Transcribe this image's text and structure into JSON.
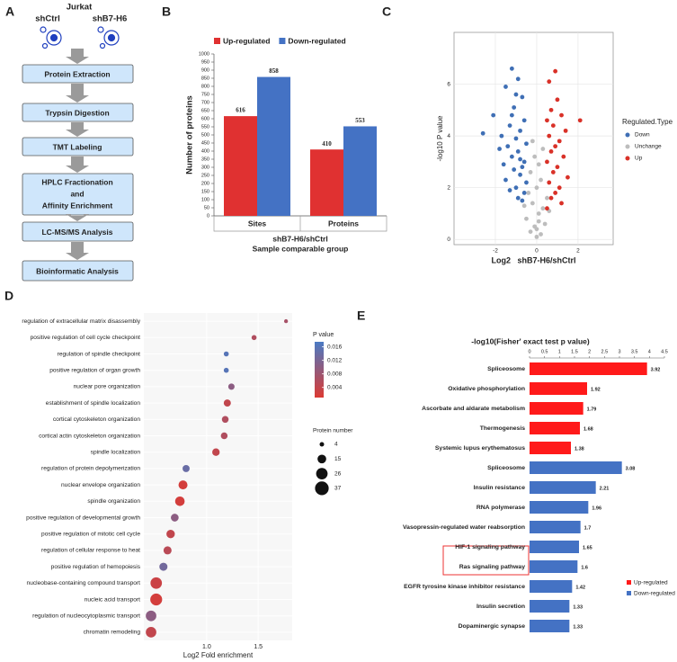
{
  "diagram": {
    "panel": "A",
    "title": "Jurkat",
    "groups": [
      "shCtrl",
      "shB7-H6"
    ],
    "steps": [
      "Protein Extraction",
      "Trypsin Digestion",
      "TMT Labeling",
      [
        "HPLC Fractionation",
        "and",
        "Affinity Enrichment"
      ],
      "LC-MS/MS Analysis",
      "Bioinformatic Analysis"
    ]
  },
  "chart_data": [
    {
      "type": "bar",
      "panel": "B",
      "ylabel": "Number of proteins",
      "xlabel": [
        "shB7-H6/shCtrl",
        "Sample comparable group"
      ],
      "categories": [
        "Sites",
        "Proteins"
      ],
      "series": [
        {
          "name": "Up-regulated",
          "color": "#e03131",
          "values": [
            616,
            410
          ]
        },
        {
          "name": "Down-regulated",
          "color": "#4472c4",
          "values": [
            858,
            553
          ]
        }
      ],
      "ylim": [
        0,
        1000
      ],
      "yticks": [
        0,
        50,
        100,
        150,
        200,
        250,
        300,
        350,
        400,
        450,
        500,
        550,
        600,
        650,
        700,
        750,
        800,
        850,
        900,
        950,
        1000
      ]
    },
    {
      "type": "scatter",
      "panel": "C",
      "ylabel": "-log10 P value",
      "xlabel": "Log2   shB7-H6/shCtrl",
      "legend_title": "Regulated.Type",
      "xlim": [
        -4,
        3.7
      ],
      "xticks": [
        -2,
        0,
        2
      ],
      "ylim": [
        -0.2,
        8
      ],
      "yticks": [
        0,
        2,
        4,
        6
      ],
      "grid": true,
      "series": [
        {
          "name": "Down",
          "color": "#3f6fb5",
          "x": [
            -1.2,
            -0.9,
            -1.5,
            -0.7,
            -1.1,
            -2.1,
            -0.6,
            -1.3,
            -0.8,
            -1.7,
            -1.0,
            -0.5,
            -1.4,
            -0.9,
            -1.2,
            -0.6,
            -2.6,
            -1.8,
            -0.7,
            -1.1,
            -0.8,
            -1.5,
            -0.5,
            -1.0,
            -1.3,
            -0.6,
            -0.9,
            -1.6,
            -0.7,
            -1.2,
            -1.0,
            -0.8
          ],
          "values": [
            6.6,
            6.2,
            5.9,
            5.5,
            5.1,
            4.8,
            4.6,
            4.4,
            4.2,
            4.0,
            3.9,
            3.7,
            3.6,
            3.4,
            3.2,
            3.0,
            4.1,
            3.5,
            2.8,
            2.7,
            2.5,
            2.3,
            2.2,
            2.0,
            1.9,
            1.8,
            1.6,
            2.9,
            1.5,
            4.8,
            5.6,
            3.1
          ]
        },
        {
          "name": "Unchange",
          "color": "#bdbdbd",
          "x": [
            0,
            -0.3,
            0.2,
            -0.1,
            0.4,
            -0.5,
            0.1,
            0.3,
            -0.2,
            0.5,
            -0.4,
            0.0,
            0.2,
            -0.3,
            0.1,
            -0.1,
            0.3,
            -0.2,
            0.0,
            0.6,
            -0.6,
            0.1
          ],
          "values": [
            0.1,
            0.3,
            0.2,
            0.5,
            0.6,
            0.8,
            1.0,
            1.2,
            1.4,
            1.6,
            1.8,
            2.0,
            2.3,
            2.6,
            2.9,
            3.2,
            3.5,
            3.8,
            0.4,
            1.1,
            1.3,
            0.7
          ]
        },
        {
          "name": "Up",
          "color": "#d93128",
          "x": [
            0.9,
            0.6,
            1.0,
            0.7,
            1.2,
            0.5,
            0.8,
            1.4,
            0.6,
            1.1,
            2.1,
            0.9,
            0.7,
            1.3,
            0.5,
            1.0,
            0.8,
            1.5,
            0.6,
            1.1,
            0.9,
            0.7,
            1.2,
            0.5
          ],
          "values": [
            6.5,
            6.1,
            5.4,
            5.0,
            4.8,
            4.6,
            4.4,
            4.2,
            4.0,
            3.8,
            4.6,
            3.6,
            3.4,
            3.2,
            3.0,
            2.8,
            2.6,
            2.4,
            2.2,
            2.0,
            1.8,
            1.6,
            1.4,
            1.2
          ]
        }
      ]
    },
    {
      "type": "dot",
      "panel": "D",
      "xlabel": "Log2 Fold enrichment",
      "color_title": "P value",
      "size_title": "Protein number",
      "categories": [
        "regulation of extracellular matrix disassembly",
        "positive regulation of cell cycle checkpoint",
        "regulation of spindle checkpoint",
        "positive regulation of organ growth",
        "nuclear pore organization",
        "establishment of spindle localization",
        "cortical cytoskeleton organization",
        "cortical actin cytoskeleton organization",
        "spindle localization",
        "regulation of protein depolymerization",
        "nuclear envelope organization",
        "spindle organization",
        "positive regulation of developmental growth",
        "positive regulation of mitotic cell cycle",
        "regulation of cellular response to heat",
        "positive regulation of hemopoiesis",
        "nucleobase-containing compound transport",
        "nucleic acid transport",
        "regulation of nucleocytoplasmic transport",
        "chromatin remodeling"
      ],
      "values": [
        1.77,
        1.46,
        1.19,
        1.19,
        1.24,
        1.2,
        1.18,
        1.17,
        1.09,
        0.8,
        0.77,
        0.74,
        0.69,
        0.65,
        0.62,
        0.58,
        0.51,
        0.51,
        0.46,
        0.46
      ],
      "pvalues": [
        0.007,
        0.006,
        0.016,
        0.016,
        0.01,
        0.004,
        0.006,
        0.006,
        0.004,
        0.014,
        0.002,
        0.002,
        0.01,
        0.004,
        0.005,
        0.013,
        0.003,
        0.002,
        0.01,
        0.004
      ],
      "sizes": [
        3,
        5,
        5,
        5,
        8,
        10,
        9,
        9,
        11,
        10,
        16,
        18,
        12,
        14,
        13,
        13,
        26,
        28,
        22,
        22
      ],
      "xlim": [
        0.39,
        1.83
      ],
      "xticks": [
        {
          "value": 1,
          "label": "1.0"
        },
        1.5
      ],
      "grid": true,
      "clim": [
        0.001,
        0.0175
      ],
      "cticks": [
        0.016,
        0.012,
        0.008,
        0.004
      ],
      "color_low": "#dc3a33",
      "color_high": "#4a7bc4",
      "size_ticks": [
        4,
        15,
        26,
        37
      ],
      "size_color": "#111111"
    },
    {
      "type": "barh",
      "panel": "E",
      "title": "-log10(Fisher' exact test p value)",
      "categories": [
        "Spliceosome",
        "Oxidative phosphorylation",
        "Ascorbate and aldarate metabolism",
        "Thermogenesis",
        "Systemic lupus erythematosus",
        "Spliceosome",
        "Insulin resistance",
        "RNA polymerase",
        "Vasopressin-regulated water reabsorption",
        "HIF-1 signaling pathway",
        "Ras signaling pathway",
        "EGFR tyrosine kinase inhibitor resistance",
        "Insulin secretion",
        "Dopaminergic synapse"
      ],
      "series": [
        {
          "name": "Up-regulated",
          "color": "#ff1a1a",
          "values": [
            3.92,
            1.92,
            1.79,
            1.68,
            1.38,
            null,
            null,
            null,
            null,
            null,
            null,
            null,
            null,
            null
          ]
        },
        {
          "name": "Down-regulated",
          "color": "#4472c4",
          "values": [
            null,
            null,
            null,
            null,
            null,
            3.08,
            2.21,
            1.96,
            1.7,
            1.65,
            1.6,
            1.42,
            1.33,
            1.33
          ]
        }
      ],
      "xlim": [
        0,
        4.5
      ],
      "xticks": [
        0,
        0.5,
        1,
        1.5,
        2,
        2.5,
        3,
        3.5,
        4,
        4.5
      ]
    }
  ]
}
